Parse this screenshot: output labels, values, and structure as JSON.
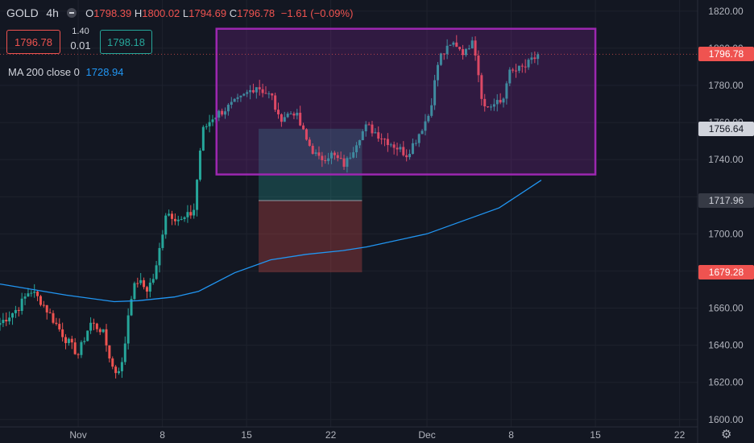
{
  "legend": {
    "symbol": "GOLD",
    "interval": "4h",
    "open": "1798.39",
    "high": "1800.02",
    "low": "1794.69",
    "close": "1796.78",
    "change": "−1.61 (−0.09%)",
    "sell_price": "1796.78",
    "spread": "1.40",
    "lot": "0.01",
    "buy_price": "1798.18",
    "ma_label": "MA 200 close 0",
    "ma_value": "1728.94"
  },
  "price_tags": [
    {
      "label": "1796.78",
      "value": 1796.78,
      "style": "red"
    },
    {
      "label": "1756.64",
      "value": 1756.64,
      "style": "light"
    },
    {
      "label": "1717.96",
      "value": 1717.96,
      "style": "gray"
    },
    {
      "label": "1679.28",
      "value": 1679.28,
      "style": "red"
    }
  ],
  "colors": {
    "up": "#26a69a",
    "down": "#ef5350",
    "ma": "#2196f3",
    "range_box": "#9c27b0",
    "background": "#131722"
  },
  "chart_data": {
    "type": "candlestick",
    "symbol": "GOLD",
    "interval": "4h",
    "ylim": [
      1596,
      1826
    ],
    "y_ticks": [
      1600,
      1620,
      1640,
      1660,
      1680,
      1700,
      1720,
      1740,
      1760,
      1780,
      1800,
      1820
    ],
    "x_ticks": [
      {
        "label": "Nov",
        "day": 1
      },
      {
        "label": "8",
        "day": 8
      },
      {
        "label": "15",
        "day": 15
      },
      {
        "label": "22",
        "day": 22
      },
      {
        "label": "Dec",
        "day": 30
      },
      {
        "label": "8",
        "day": 37
      },
      {
        "label": "15",
        "day": 44
      },
      {
        "label": "22",
        "day": 51
      }
    ],
    "x_range_days": [
      -5.5,
      52.5
    ],
    "candle_keypoints": [
      {
        "day": -5.5,
        "close": 1652
      },
      {
        "day": -4,
        "close": 1660
      },
      {
        "day": -3,
        "close": 1670
      },
      {
        "day": -2,
        "close": 1663
      },
      {
        "day": 0,
        "close": 1643
      },
      {
        "day": 1,
        "close": 1635
      },
      {
        "day": 2,
        "close": 1652
      },
      {
        "day": 3,
        "close": 1648
      },
      {
        "day": 4,
        "close": 1625
      },
      {
        "day": 4.7,
        "close": 1630
      },
      {
        "day": 5.3,
        "close": 1665
      },
      {
        "day": 5.9,
        "close": 1675
      },
      {
        "day": 6.7,
        "close": 1670
      },
      {
        "day": 7.4,
        "close": 1678
      },
      {
        "day": 8.3,
        "close": 1712
      },
      {
        "day": 9.6,
        "close": 1707
      },
      {
        "day": 10.6,
        "close": 1712
      },
      {
        "day": 11.3,
        "close": 1755
      },
      {
        "day": 12.2,
        "close": 1763
      },
      {
        "day": 14.4,
        "close": 1772
      },
      {
        "day": 15.8,
        "close": 1780
      },
      {
        "day": 17.2,
        "close": 1773
      },
      {
        "day": 17.6,
        "close": 1762
      },
      {
        "day": 19,
        "close": 1766
      },
      {
        "day": 20,
        "close": 1750
      },
      {
        "day": 21,
        "close": 1740
      },
      {
        "day": 22,
        "close": 1743
      },
      {
        "day": 23.2,
        "close": 1737
      },
      {
        "day": 24.3,
        "close": 1752
      },
      {
        "day": 25,
        "close": 1758
      },
      {
        "day": 26.3,
        "close": 1752
      },
      {
        "day": 27.2,
        "close": 1748
      },
      {
        "day": 28.3,
        "close": 1743
      },
      {
        "day": 29,
        "close": 1750
      },
      {
        "day": 30.2,
        "close": 1765
      },
      {
        "day": 31,
        "close": 1795
      },
      {
        "day": 32.3,
        "close": 1803
      },
      {
        "day": 33.2,
        "close": 1797
      },
      {
        "day": 33.8,
        "close": 1807
      },
      {
        "day": 34.2,
        "close": 1790
      },
      {
        "day": 34.7,
        "close": 1768
      },
      {
        "day": 36.3,
        "close": 1771
      },
      {
        "day": 36.7,
        "close": 1786
      },
      {
        "day": 38.2,
        "close": 1790
      },
      {
        "day": 39.3,
        "close": 1796.78
      }
    ],
    "ma200": [
      {
        "day": -5.5,
        "value": 1673
      },
      {
        "day": 0,
        "value": 1667
      },
      {
        "day": 4,
        "value": 1663.5
      },
      {
        "day": 6,
        "value": 1664
      },
      {
        "day": 9,
        "value": 1666
      },
      {
        "day": 11,
        "value": 1669
      },
      {
        "day": 14,
        "value": 1679
      },
      {
        "day": 17,
        "value": 1686
      },
      {
        "day": 20,
        "value": 1689
      },
      {
        "day": 23,
        "value": 1691
      },
      {
        "day": 25,
        "value": 1693
      },
      {
        "day": 30,
        "value": 1700
      },
      {
        "day": 33,
        "value": 1707
      },
      {
        "day": 36,
        "value": 1714
      },
      {
        "day": 39.5,
        "value": 1728.94
      }
    ],
    "range_box": {
      "day_start": 12.5,
      "day_end": 44,
      "price_top": 1810.5,
      "price_bottom": 1732
    },
    "position_tool": {
      "day_start": 16,
      "day_end": 24.6,
      "target": 1756.64,
      "entry": 1717.96,
      "stop": 1679.28
    }
  }
}
